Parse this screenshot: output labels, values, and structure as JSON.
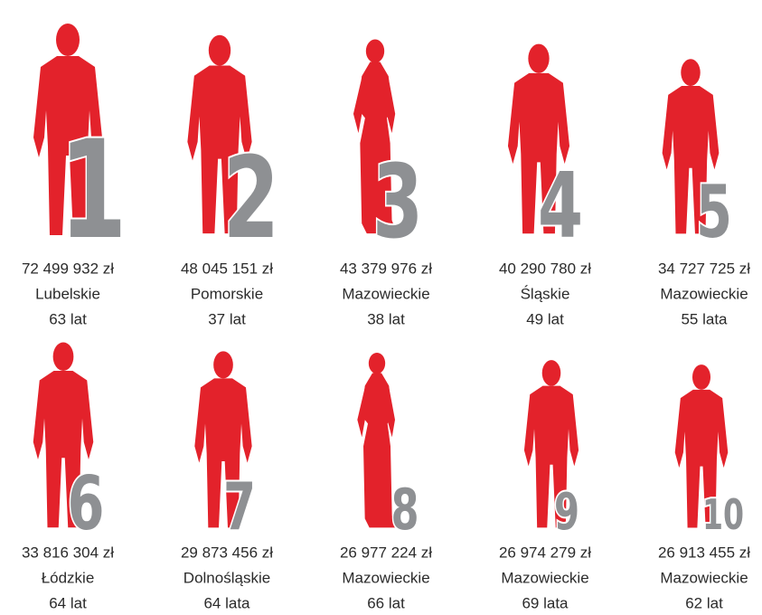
{
  "items": [
    {
      "rank": "1",
      "amount": "72 499 932 zł",
      "region": "Lubelskie",
      "age": "63 lat"
    },
    {
      "rank": "2",
      "amount": "48 045 151 zł",
      "region": "Pomorskie",
      "age": "37 lat"
    },
    {
      "rank": "3",
      "amount": "43 379 976 zł",
      "region": "Mazowieckie",
      "age": "38 lat"
    },
    {
      "rank": "4",
      "amount": "40 290 780 zł",
      "region": "Śląskie",
      "age": "49 lat"
    },
    {
      "rank": "5",
      "amount": "34 727 725 zł",
      "region": "Mazowieckie",
      "age": "55 lata"
    },
    {
      "rank": "6",
      "amount": "33 816 304 zł",
      "region": "Łódzkie",
      "age": "64 lat"
    },
    {
      "rank": "7",
      "amount": "29 873 456 zł",
      "region": "Dolnośląskie",
      "age": "64 lata"
    },
    {
      "rank": "8",
      "amount": "26 977 224 zł",
      "region": "Mazowieckie",
      "age": "66 lat"
    },
    {
      "rank": "9",
      "amount": "26 974 279 zł",
      "region": "Mazowieckie",
      "age": "69 lata"
    },
    {
      "rank": "10",
      "amount": "26 913 455 zł",
      "region": "Mazowieckie",
      "age": "62 lat"
    }
  ]
}
